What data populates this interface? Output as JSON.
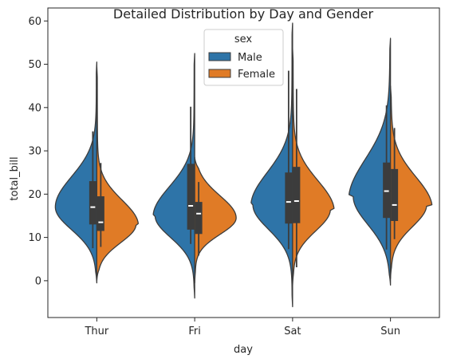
{
  "chart_data": {
    "type": "violin",
    "title": "Detailed Distribution by Day and Gender",
    "xlabel": "day",
    "ylabel": "total_bill",
    "categories": [
      "Thur",
      "Fri",
      "Sat",
      "Sun"
    ],
    "ylim": [
      -8.5,
      63
    ],
    "yticks": [
      0,
      10,
      20,
      30,
      40,
      50,
      60
    ],
    "grid": false,
    "split": true,
    "legend": {
      "title": "sex",
      "placement": "top-center"
    },
    "series": [
      {
        "name": "Male",
        "color": "#2e74a8",
        "violins": [
          {
            "category": "Thur",
            "range": [
              -0.5,
              50.5
            ],
            "peak": 17,
            "spread": 5.2,
            "tail": 9.5,
            "mass": 0.0,
            "q1": 13.0,
            "median": 17.0,
            "q3": 23.0,
            "whisker": [
              7.5,
              34.5
            ]
          },
          {
            "category": "Fri",
            "range": [
              -4,
              52.5
            ],
            "peak": 15,
            "spread": 5.0,
            "tail": 11.0,
            "mass": 0.05,
            "q1": 11.8,
            "median": 17.3,
            "q3": 27.0,
            "whisker": [
              8.5,
              40.2
            ]
          },
          {
            "category": "Sat",
            "range": [
              -6,
              59.5
            ],
            "peak": 17.5,
            "spread": 5.6,
            "tail": 11.0,
            "mass": 0.05,
            "q1": 13.2,
            "median": 18.2,
            "q3": 25.0,
            "whisker": [
              7.3,
              48.5
            ]
          },
          {
            "category": "Sun",
            "range": [
              -1,
              56
            ],
            "peak": 19.5,
            "spread": 6.5,
            "tail": 10.5,
            "mass": 0.12,
            "q1": 14.5,
            "median": 20.7,
            "q3": 27.3,
            "whisker": [
              7.2,
              40.5
            ]
          }
        ]
      },
      {
        "name": "Female",
        "color": "#e07b26",
        "violins": [
          {
            "category": "Thur",
            "range": [
              0,
              49.5
            ],
            "peak": 13,
            "spread": 4.2,
            "tail": 8.0,
            "mass": 0.06,
            "q1": 11.5,
            "median": 13.5,
            "q3": 19.5,
            "whisker": [
              7.8,
              27.2
            ]
          },
          {
            "category": "Fri",
            "range": [
              -0.5,
              28.5
            ],
            "peak": 14.5,
            "spread": 3.8,
            "tail": 4.5,
            "mass": 0.0,
            "q1": 10.8,
            "median": 15.5,
            "q3": 18.2,
            "whisker": [
              5.8,
              22.8
            ]
          },
          {
            "category": "Sat",
            "range": [
              -1,
              53.5
            ],
            "peak": 16.5,
            "spread": 5.0,
            "tail": 9.0,
            "mass": 0.1,
            "q1": 13.3,
            "median": 18.4,
            "q3": 26.3,
            "whisker": [
              3.1,
              44.3
            ]
          },
          {
            "category": "Sun",
            "range": [
              0.5,
              45
            ],
            "peak": 17.5,
            "spread": 5.0,
            "tail": 8.5,
            "mass": 0.15,
            "q1": 13.8,
            "median": 17.5,
            "q3": 25.8,
            "whisker": [
              9.6,
              35.3
            ]
          }
        ]
      }
    ]
  }
}
